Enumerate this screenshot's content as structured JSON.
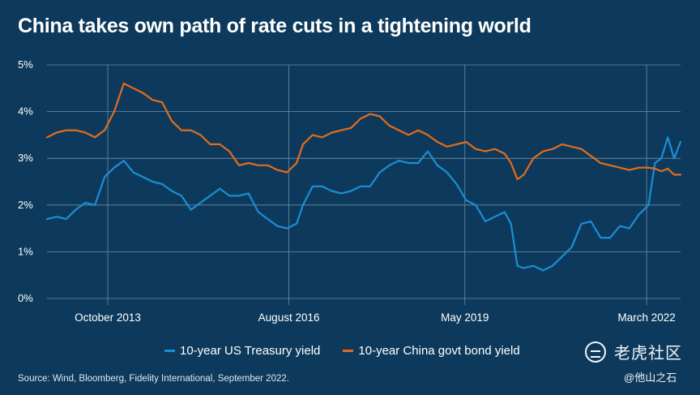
{
  "chart_data": {
    "type": "line",
    "title": "China takes own path of rate cuts in a tightening world",
    "xlabel": "",
    "ylabel": "",
    "ylim": [
      0,
      5
    ],
    "yticks": [
      "0%",
      "1%",
      "2%",
      "3%",
      "4%",
      "5%"
    ],
    "xticks": [
      {
        "label": "October 2013",
        "x": 2013.75
      },
      {
        "label": "August 2016",
        "x": 2016.58
      },
      {
        "label": "May 2019",
        "x": 2019.33
      },
      {
        "label": "March 2022",
        "x": 2022.17
      }
    ],
    "xlim": [
      2012.8,
      2022.7
    ],
    "grid": true,
    "legend_position": "bottom",
    "series": [
      {
        "name": "10-year US Treasury yield",
        "color": "#1b8ed4",
        "x": [
          2012.8,
          2012.95,
          2013.1,
          2013.25,
          2013.4,
          2013.55,
          2013.7,
          2013.85,
          2014.0,
          2014.15,
          2014.3,
          2014.45,
          2014.6,
          2014.75,
          2014.9,
          2015.05,
          2015.2,
          2015.35,
          2015.5,
          2015.65,
          2015.8,
          2015.95,
          2016.1,
          2016.25,
          2016.4,
          2016.55,
          2016.7,
          2016.8,
          2016.95,
          2017.1,
          2017.25,
          2017.4,
          2017.55,
          2017.7,
          2017.85,
          2018.0,
          2018.15,
          2018.3,
          2018.45,
          2018.6,
          2018.75,
          2018.9,
          2019.05,
          2019.2,
          2019.35,
          2019.5,
          2019.65,
          2019.8,
          2019.95,
          2020.05,
          2020.15,
          2020.25,
          2020.4,
          2020.55,
          2020.7,
          2020.85,
          2021.0,
          2021.15,
          2021.3,
          2021.45,
          2021.6,
          2021.75,
          2021.9,
          2022.05,
          2022.2,
          2022.3,
          2022.4,
          2022.5,
          2022.6,
          2022.7
        ],
        "values": [
          1.7,
          1.75,
          1.7,
          1.9,
          2.05,
          2.0,
          2.6,
          2.8,
          2.95,
          2.7,
          2.6,
          2.5,
          2.45,
          2.3,
          2.2,
          1.9,
          2.05,
          2.2,
          2.35,
          2.2,
          2.2,
          2.25,
          1.85,
          1.7,
          1.55,
          1.5,
          1.6,
          2.0,
          2.4,
          2.4,
          2.3,
          2.25,
          2.3,
          2.4,
          2.4,
          2.7,
          2.85,
          2.95,
          2.9,
          2.9,
          3.15,
          2.85,
          2.7,
          2.45,
          2.1,
          2.0,
          1.65,
          1.75,
          1.85,
          1.6,
          0.7,
          0.65,
          0.7,
          0.6,
          0.7,
          0.9,
          1.1,
          1.6,
          1.65,
          1.3,
          1.3,
          1.55,
          1.5,
          1.8,
          2.0,
          2.9,
          3.0,
          3.45,
          3.0,
          3.35
        ]
      },
      {
        "name": "10-year China govt bond yield",
        "color": "#e46c1b",
        "x": [
          2012.8,
          2012.95,
          2013.1,
          2013.25,
          2013.4,
          2013.55,
          2013.7,
          2013.85,
          2014.0,
          2014.15,
          2014.3,
          2014.45,
          2014.6,
          2014.75,
          2014.9,
          2015.05,
          2015.2,
          2015.35,
          2015.5,
          2015.65,
          2015.8,
          2015.95,
          2016.1,
          2016.25,
          2016.4,
          2016.55,
          2016.7,
          2016.8,
          2016.95,
          2017.1,
          2017.25,
          2017.4,
          2017.55,
          2017.7,
          2017.85,
          2018.0,
          2018.15,
          2018.3,
          2018.45,
          2018.6,
          2018.75,
          2018.9,
          2019.05,
          2019.2,
          2019.35,
          2019.5,
          2019.65,
          2019.8,
          2019.95,
          2020.05,
          2020.15,
          2020.25,
          2020.4,
          2020.55,
          2020.7,
          2020.85,
          2021.0,
          2021.15,
          2021.3,
          2021.45,
          2021.6,
          2021.75,
          2021.9,
          2022.05,
          2022.2,
          2022.3,
          2022.4,
          2022.5,
          2022.6,
          2022.7
        ],
        "values": [
          3.45,
          3.55,
          3.6,
          3.6,
          3.55,
          3.45,
          3.6,
          4.0,
          4.6,
          4.5,
          4.4,
          4.25,
          4.2,
          3.8,
          3.6,
          3.6,
          3.5,
          3.3,
          3.3,
          3.15,
          2.85,
          2.9,
          2.85,
          2.85,
          2.75,
          2.7,
          2.9,
          3.3,
          3.5,
          3.45,
          3.55,
          3.6,
          3.65,
          3.85,
          3.95,
          3.9,
          3.7,
          3.6,
          3.5,
          3.6,
          3.5,
          3.35,
          3.25,
          3.3,
          3.35,
          3.2,
          3.15,
          3.2,
          3.1,
          2.9,
          2.55,
          2.65,
          3.0,
          3.15,
          3.2,
          3.3,
          3.25,
          3.2,
          3.05,
          2.9,
          2.85,
          2.8,
          2.75,
          2.8,
          2.8,
          2.78,
          2.72,
          2.78,
          2.65,
          2.65
        ]
      }
    ]
  },
  "source": "Source: Wind, Bloomberg, Fidelity International, September 2022.",
  "watermark": {
    "name": "老虎社区",
    "handle": "@他山之石"
  },
  "colors": {
    "background": "#0d3a5c",
    "grid": "#6f8da5",
    "text": "#ffffff"
  }
}
